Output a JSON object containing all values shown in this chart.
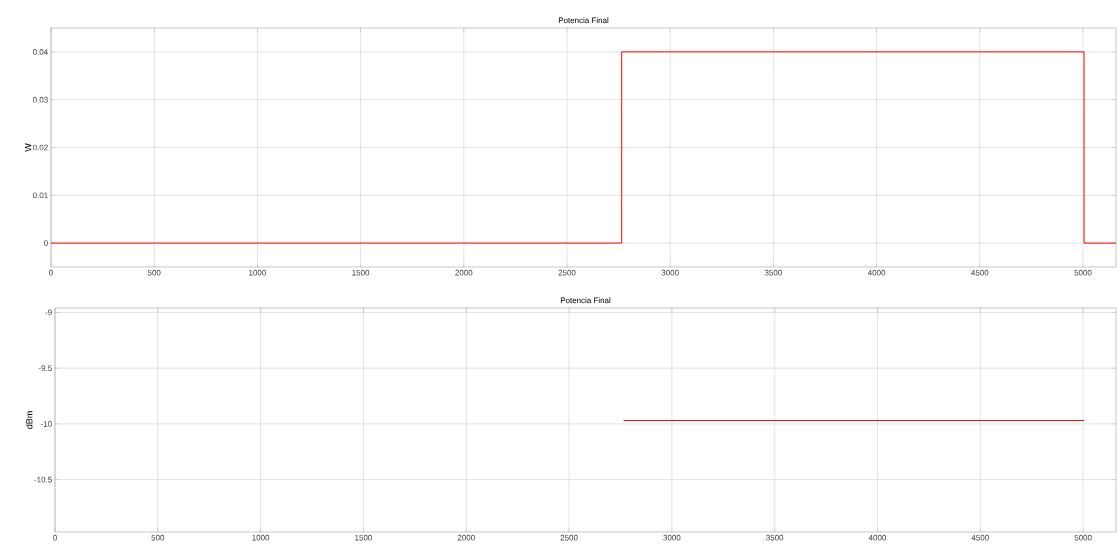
{
  "chart_data": [
    {
      "type": "line",
      "title": "Potencia Final",
      "ylabel": "W",
      "xlim": [
        0,
        5160
      ],
      "ylim": [
        -0.005,
        0.045
      ],
      "xticks": [
        0,
        500,
        1000,
        1500,
        2000,
        2500,
        3000,
        3500,
        4000,
        4500,
        5000
      ],
      "yticks": [
        0,
        0.01,
        0.02,
        0.03,
        0.04
      ],
      "grid": true,
      "series": [
        {
          "color": "#ff0000",
          "x": [
            0,
            2765,
            2765,
            5005,
            5005,
            5160
          ],
          "values": [
            0,
            0,
            0.04,
            0.04,
            0,
            0
          ]
        }
      ]
    },
    {
      "type": "line",
      "title": "Potencia Final",
      "ylabel": "dBm",
      "xlim": [
        0,
        5160
      ],
      "ylim": [
        -10.97,
        -8.96
      ],
      "xticks": [
        0,
        500,
        1000,
        1500,
        2000,
        2500,
        3000,
        3500,
        4000,
        4500,
        5000
      ],
      "yticks": [
        -10.5,
        -10,
        -9.5,
        -9
      ],
      "grid": true,
      "series": [
        {
          "color": "#ff0000",
          "x": [
            2765,
            5005
          ],
          "values": [
            -9.97,
            -9.97
          ]
        }
      ]
    }
  ]
}
